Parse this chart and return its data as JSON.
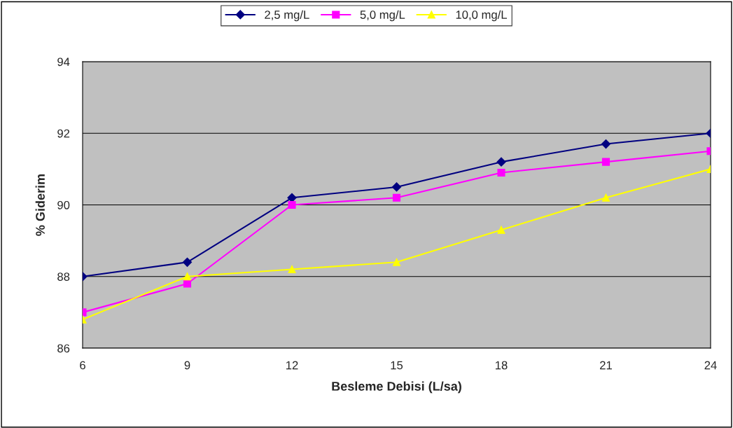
{
  "chart_data": {
    "type": "line",
    "xlabel": "Besleme Debisi (L/sa)",
    "ylabel": "% Giderim",
    "x": [
      6,
      9,
      12,
      15,
      18,
      21,
      24
    ],
    "series": [
      {
        "name": "2,5 mg/L",
        "color": "#000080",
        "marker": "diamond",
        "values": [
          88.0,
          88.4,
          90.2,
          90.5,
          91.2,
          91.7,
          92.0
        ]
      },
      {
        "name": "5,0 mg/L",
        "color": "#ff00ff",
        "marker": "square",
        "values": [
          87.0,
          87.8,
          90.0,
          90.2,
          90.9,
          91.2,
          91.5
        ]
      },
      {
        "name": "10,0 mg/L",
        "color": "#ffff00",
        "marker": "triangle",
        "values": [
          86.8,
          88.0,
          88.2,
          88.4,
          89.3,
          90.2,
          91.0
        ]
      }
    ],
    "xlim": [
      6,
      24
    ],
    "xticks": [
      6,
      9,
      12,
      15,
      18,
      21,
      24
    ],
    "ylim": [
      86,
      94
    ],
    "yticks": [
      86,
      88,
      90,
      92,
      94
    ],
    "grid": "y",
    "legend": "top",
    "line_style": "solid"
  }
}
